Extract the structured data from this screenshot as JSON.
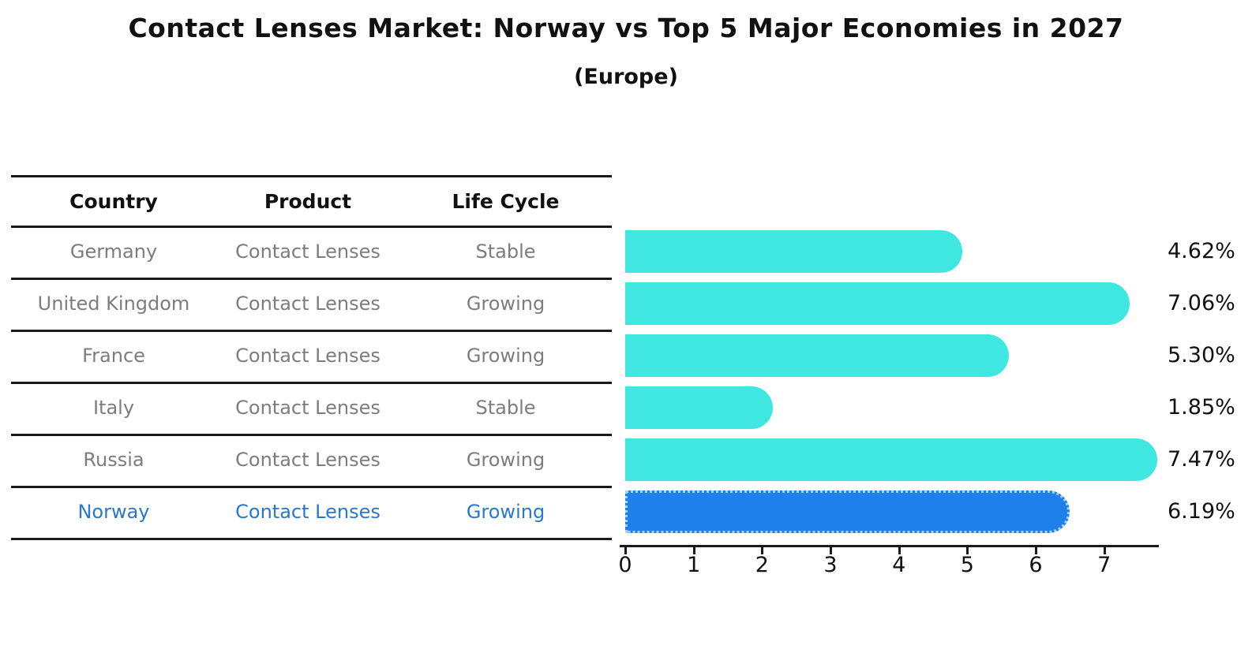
{
  "title": "Contact Lenses Market: Norway vs Top 5 Major Economies in 2027",
  "subtitle": "(Europe)",
  "table": {
    "headers": [
      "Country",
      "Product",
      "Life Cycle"
    ],
    "rows": [
      {
        "country": "Germany",
        "product": "Contact Lenses",
        "life_cycle": "Stable"
      },
      {
        "country": "United Kingdom",
        "product": "Contact Lenses",
        "life_cycle": "Growing"
      },
      {
        "country": "France",
        "product": "Contact Lenses",
        "life_cycle": "Growing"
      },
      {
        "country": "Italy",
        "product": "Contact Lenses",
        "life_cycle": "Stable"
      },
      {
        "country": "Russia",
        "product": "Contact Lenses",
        "life_cycle": "Growing"
      },
      {
        "country": "Norway",
        "product": "Contact Lenses",
        "life_cycle": "Growing"
      }
    ]
  },
  "chart_data": {
    "type": "bar",
    "orientation": "horizontal",
    "title": "Contact Lenses Market: Norway vs Top 5 Major Economies in 2027",
    "subtitle": "(Europe)",
    "categories": [
      "Germany",
      "United Kingdom",
      "France",
      "Italy",
      "Russia",
      "Norway"
    ],
    "values": [
      4.62,
      7.06,
      5.3,
      1.85,
      7.47,
      6.19
    ],
    "value_labels": [
      "4.62%",
      "7.06%",
      "5.30%",
      "1.85%",
      "7.47%",
      "6.19%"
    ],
    "x_ticks": [
      0,
      1,
      2,
      3,
      4,
      5,
      6,
      7
    ],
    "xlim": [
      0,
      7.8
    ],
    "grid": false,
    "legend": false,
    "bar_color": "#40e7e0",
    "highlight_color": "#1f80ec",
    "highlight_text_color": "#2878cd",
    "highlight_index": 5
  }
}
